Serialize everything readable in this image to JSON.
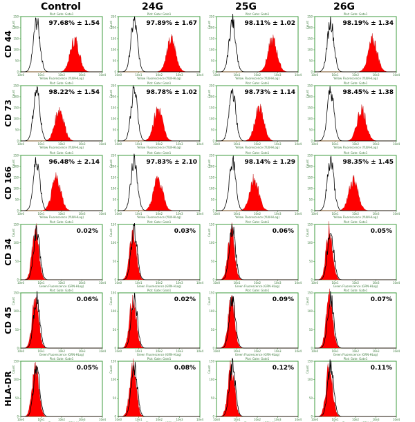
{
  "chart_data": {
    "type": "histogram-grid",
    "columns": [
      "Control",
      "24G",
      "25G",
      "26G"
    ],
    "rows": [
      {
        "marker": "CD 44",
        "channel": "Yellow Fluorescence (YLW-HLog)",
        "positive": true,
        "values": [
          "97.68% ± 1.54",
          "97.89% ± 1.67",
          "98.11% ± 1.02",
          "98.19% ± 1.34"
        ],
        "peaks": [
          2.65,
          2.6,
          2.75,
          2.85
        ]
      },
      {
        "marker": "CD 73",
        "channel": "Yellow Fluorescence (YLW-HLog)",
        "positive": true,
        "values": [
          "98.22% ± 1.54",
          "98.78% ± 1.02",
          "98.73% ± 1.14",
          "98.45% ± 1.38"
        ],
        "peaks": [
          1.9,
          1.95,
          2.1,
          2.3
        ]
      },
      {
        "marker": "CD 166",
        "channel": "Yellow Fluorescence (YLW-HLog)",
        "positive": true,
        "values": [
          "96.48% ± 2.14",
          "97.83% ± 2.10",
          "98.14% ± 1.29",
          "98.35% ± 1.45"
        ],
        "peaks": [
          1.75,
          1.95,
          1.85,
          1.9
        ]
      },
      {
        "marker": "CD 34",
        "channel": "Green Fluorescence (GRN-HLog)",
        "positive": false,
        "values": [
          "0.02%",
          "0.03%",
          "0.06%",
          "0.05%"
        ]
      },
      {
        "marker": "CD 45",
        "channel": "Green Fluorescence (GRN-HLog)",
        "positive": false,
        "values": [
          "0.06%",
          "0.02%",
          "0.09%",
          "0.07%"
        ]
      },
      {
        "marker": "HLA-DR",
        "channel": "Green Fluorescence (GRN-HLog)",
        "positive": false,
        "values": [
          "0.05%",
          "0.08%",
          "0.12%",
          "0.11%"
        ]
      }
    ],
    "plot_title": "Plot: Gate: Gate1",
    "y_label": "Count",
    "x_ticks": [
      "10e0",
      "10e1",
      "10e2",
      "10e3",
      "10e4"
    ],
    "xlim": [
      0,
      4
    ],
    "y_ticks_positive": [
      "0",
      "50",
      "100",
      "150",
      "200",
      "250"
    ],
    "y_ticks_negative": [
      "0",
      "50",
      "100",
      "150"
    ],
    "colors": {
      "filled": "#ff0000",
      "outline": "#000000",
      "frame": "#3c9b3c"
    }
  }
}
